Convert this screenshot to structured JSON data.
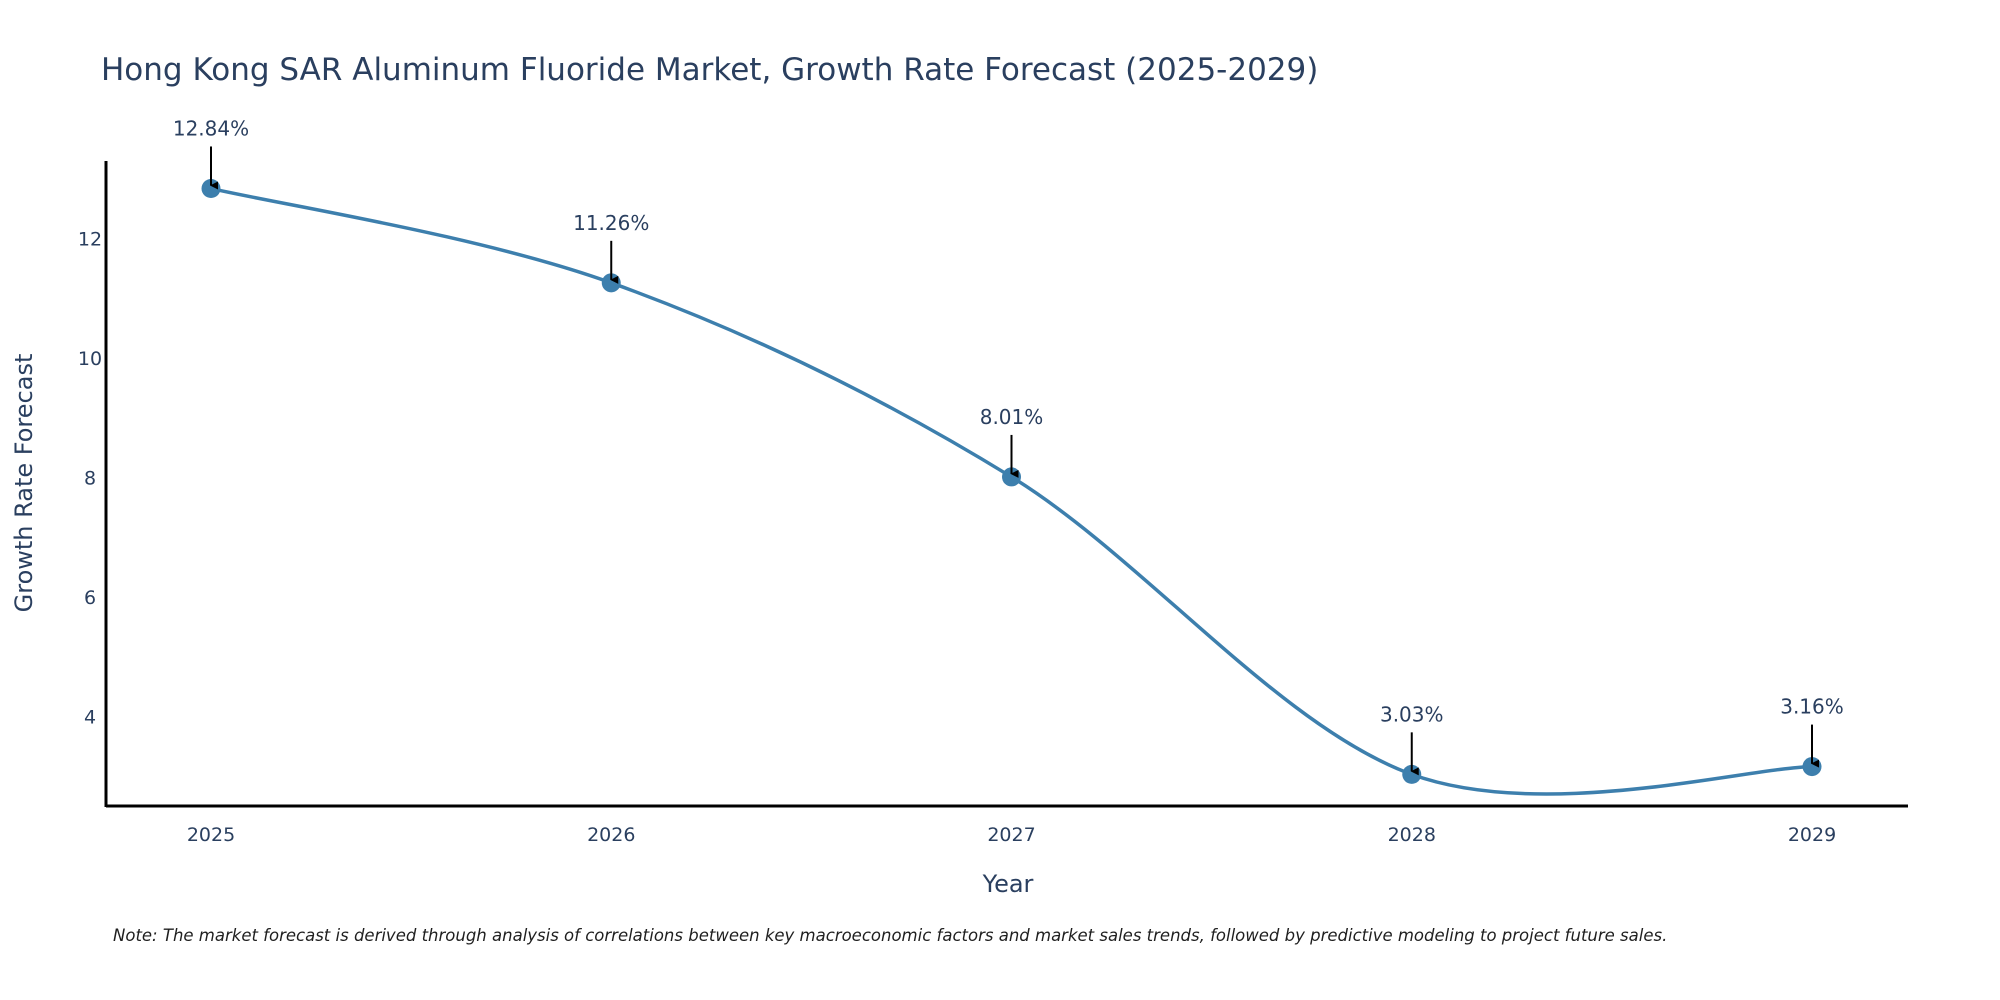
{
  "chart_data": {
    "type": "line",
    "title": "Hong Kong SAR Aluminum Fluoride Market, Growth Rate Forecast (2025-2029)",
    "xlabel": "Year",
    "ylabel": "Growth Rate Forecast",
    "x": [
      "2025",
      "2026",
      "2027",
      "2028",
      "2029"
    ],
    "values": [
      12.84,
      11.26,
      8.01,
      3.03,
      3.16
    ],
    "annotations": [
      "12.84%",
      "11.26%",
      "8.01%",
      "3.03%",
      "3.16%"
    ],
    "yticks": [
      4,
      6,
      8,
      10,
      12
    ],
    "ylim": [
      2.5,
      13.3
    ],
    "grid": false,
    "line_color": "#3d7fad",
    "marker_color": "#3d7fad",
    "note": "Note: The market forecast is derived through analysis of correlations between key macroeconomic factors and market sales trends, followed by predictive modeling to project future sales."
  }
}
